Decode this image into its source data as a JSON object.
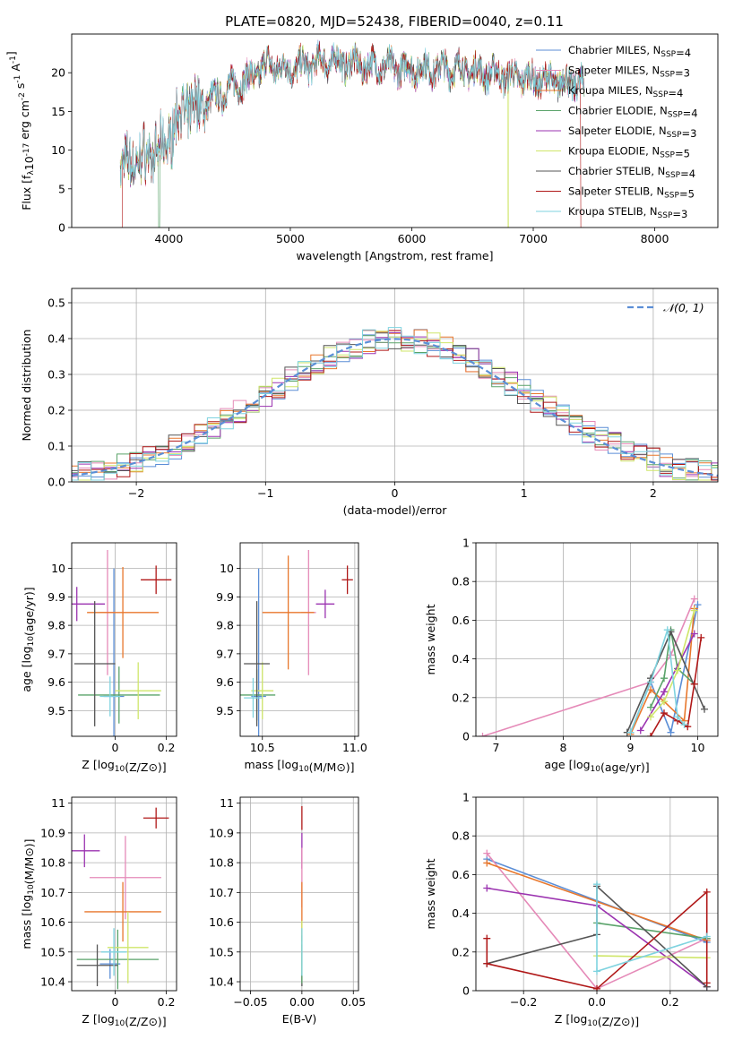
{
  "figure": {
    "title": "PLATE=0820, MJD=52438, FIBERID=0040, z=0.11"
  },
  "colors": {
    "Chabrier MILES": "#5b8ed6",
    "Salpeter MILES": "#e58ab8",
    "Kroupa MILES": "#e8772c",
    "Chabrier ELODIE": "#5aa36a",
    "Salpeter ELODIE": "#9b33b0",
    "Kroupa ELODIE": "#cfe66a",
    "Chabrier STELIB": "#555555",
    "Salpeter STELIB": "#b01818",
    "Kroupa STELIB": "#7fd3df",
    "normal": "#5b8ed6",
    "grid": "#b0b0b0"
  },
  "chart_data": [
    {
      "id": "spectrum",
      "type": "line",
      "xlabel": "wavelength [Angstrom, rest frame]",
      "ylabel": "Flux [f_λ10^{-17} erg cm^{-2} s^{-1} A^{-1}]",
      "xlim": [
        3200,
        8520
      ],
      "ylim": [
        0,
        25
      ],
      "xticks": [
        4000,
        5000,
        6000,
        7000,
        8000
      ],
      "yticks": [
        0,
        5,
        10,
        15,
        20
      ],
      "grid": false,
      "legend_position": "right",
      "spectrum_trend": {
        "x": [
          3600,
          3800,
          3950,
          4100,
          4300,
          4500,
          4700,
          4800,
          5000,
          5300,
          5600,
          6000,
          6400,
          6800,
          7100,
          7400
        ],
        "y": [
          8,
          9,
          10,
          15,
          16,
          18,
          19.5,
          21,
          20.5,
          21.5,
          21,
          20.5,
          20.5,
          19.5,
          19,
          18.5
        ]
      },
      "series": [
        {
          "name": "Chabrier MILES",
          "label": "Chabrier MILES, N_{SSP}=4",
          "nssp": 4
        },
        {
          "name": "Salpeter MILES",
          "label": "Salpeter MILES, N_{SSP}=3",
          "nssp": 3
        },
        {
          "name": "Kroupa MILES",
          "label": "Kroupa MILES, N_{SSP}=4",
          "nssp": 4
        },
        {
          "name": "Chabrier ELODIE",
          "label": "Chabrier ELODIE, N_{SSP}=4",
          "nssp": 4
        },
        {
          "name": "Salpeter ELODIE",
          "label": "Salpeter ELODIE, N_{SSP}=3",
          "nssp": 3
        },
        {
          "name": "Kroupa ELODIE",
          "label": "Kroupa ELODIE, N_{SSP}=5",
          "nssp": 5
        },
        {
          "name": "Chabrier STELIB",
          "label": "Chabrier STELIB, N_{SSP}=4",
          "nssp": 4
        },
        {
          "name": "Salpeter STELIB",
          "label": "Salpeter STELIB, N_{SSP}=5",
          "nssp": 5
        },
        {
          "name": "Kroupa STELIB",
          "label": "Kroupa STELIB, N_{SSP}=3",
          "nssp": 3
        }
      ]
    },
    {
      "id": "residuals",
      "type": "line",
      "xlabel": "(data-model)/error",
      "ylabel": "Normed distribution",
      "xlim": [
        -2.5,
        2.5
      ],
      "ylim": [
        0,
        0.54
      ],
      "xticks": [
        -2,
        -1,
        0,
        1,
        2
      ],
      "xtick_labels": [
        "−2",
        "−1",
        "0",
        "1",
        "2"
      ],
      "yticks": [
        0.0,
        0.1,
        0.2,
        0.3,
        0.4,
        0.5
      ],
      "ytick_labels": [
        "0.0",
        "0.1",
        "0.2",
        "0.3",
        "0.4",
        "0.5"
      ],
      "grid": true,
      "legend": "𝒩(0, 1)",
      "legend_position": "top-right",
      "bin_width": 0.1
    },
    {
      "id": "z-age",
      "type": "scatter",
      "xlabel": "Z [log10(Z/Z⊙)]",
      "ylabel": "age [log10(age/yr)]",
      "xlim": [
        -0.17,
        0.24
      ],
      "ylim": [
        9.41,
        10.09
      ],
      "xticks": [
        0.0,
        0.2
      ],
      "yticks": [
        9.5,
        9.6,
        9.7,
        9.8,
        9.9,
        10.0
      ],
      "grid": true,
      "points": [
        {
          "series": "Chabrier MILES",
          "x": -0.005,
          "y": 9.55,
          "xerr": 0.04,
          "yerr": 0.45
        },
        {
          "series": "Salpeter MILES",
          "x": -0.03,
          "y": 9.845,
          "xerr": 0.03,
          "yerr": 0.22
        },
        {
          "series": "Kroupa MILES",
          "x": 0.03,
          "y": 9.845,
          "xerr": 0.14,
          "yerr": 0.16
        },
        {
          "series": "Chabrier ELODIE",
          "x": 0.015,
          "y": 9.555,
          "xerr": 0.16,
          "yerr": 0.1
        },
        {
          "series": "Salpeter ELODIE",
          "x": -0.15,
          "y": 9.875,
          "xerr": 0.11,
          "yerr": 0.06
        },
        {
          "series": "Kroupa ELODIE",
          "x": 0.09,
          "y": 9.57,
          "xerr": 0.09,
          "yerr": 0.1
        },
        {
          "series": "Chabrier STELIB",
          "x": -0.08,
          "y": 9.665,
          "xerr": 0.08,
          "yerr": 0.22
        },
        {
          "series": "Salpeter STELIB",
          "x": 0.16,
          "y": 9.96,
          "xerr": 0.06,
          "yerr": 0.05
        },
        {
          "series": "Kroupa STELIB",
          "x": -0.02,
          "y": 9.55,
          "xerr": 0.04,
          "yerr": 0.07
        }
      ]
    },
    {
      "id": "mass-age",
      "type": "scatter",
      "xlabel": "mass [log10(M/M⊙)]",
      "ylabel": "",
      "xlim": [
        10.38,
        11.02
      ],
      "ylim": [
        9.41,
        10.09
      ],
      "xticks": [
        10.5,
        11.0
      ],
      "xtick_labels": [
        "10.5",
        "11.0"
      ],
      "yticks": [
        9.5,
        9.6,
        9.7,
        9.8,
        9.9,
        10.0
      ],
      "grid": true,
      "points": [
        {
          "series": "Chabrier MILES",
          "x": 10.48,
          "y": 9.55,
          "xerr": 0.04,
          "yerr": 0.45
        },
        {
          "series": "Salpeter MILES",
          "x": 10.75,
          "y": 9.845,
          "xerr": 0.04,
          "yerr": 0.22
        },
        {
          "series": "Kroupa MILES",
          "x": 10.64,
          "y": 9.845,
          "xerr": 0.14,
          "yerr": 0.2
        },
        {
          "series": "Chabrier ELODIE",
          "x": 10.47,
          "y": 9.555,
          "xerr": 0.1,
          "yerr": 0.09
        },
        {
          "series": "Salpeter ELODIE",
          "x": 10.84,
          "y": 9.875,
          "xerr": 0.05,
          "yerr": 0.05
        },
        {
          "series": "Kroupa ELODIE",
          "x": 10.5,
          "y": 9.57,
          "xerr": 0.06,
          "yerr": 0.1
        },
        {
          "series": "Chabrier STELIB",
          "x": 10.47,
          "y": 9.665,
          "xerr": 0.07,
          "yerr": 0.22
        },
        {
          "series": "Salpeter STELIB",
          "x": 10.96,
          "y": 9.96,
          "xerr": 0.03,
          "yerr": 0.05
        },
        {
          "series": "Kroupa STELIB",
          "x": 10.45,
          "y": 9.545,
          "xerr": 0.05,
          "yerr": 0.07
        }
      ]
    },
    {
      "id": "age-weight",
      "type": "line",
      "xlabel": "age [log10(age/yr)]",
      "ylabel": "mass weight",
      "xlim": [
        6.7,
        10.3
      ],
      "ylim": [
        0,
        1
      ],
      "xticks": [
        7,
        8,
        9,
        10
      ],
      "yticks": [
        0.0,
        0.2,
        0.4,
        0.6,
        0.8,
        1.0
      ],
      "grid": true,
      "series": [
        {
          "name": "Chabrier MILES",
          "x": [
            9.0,
            9.3,
            9.6,
            10.0
          ],
          "y": [
            0.02,
            0.28,
            0.02,
            0.68
          ]
        },
        {
          "name": "Salpeter MILES",
          "x": [
            6.8,
            9.3,
            9.6,
            9.95
          ],
          "y": [
            0.0,
            0.28,
            0.42,
            0.71
          ]
        },
        {
          "name": "Kroupa MILES",
          "x": [
            9.0,
            9.3,
            9.5,
            9.8,
            9.95
          ],
          "y": [
            0.01,
            0.24,
            0.18,
            0.08,
            0.66
          ]
        },
        {
          "name": "Chabrier ELODIE",
          "x": [
            9.3,
            9.5,
            9.6,
            9.7,
            9.95
          ],
          "y": [
            0.15,
            0.3,
            0.55,
            0.35,
            0.27
          ]
        },
        {
          "name": "Salpeter ELODIE",
          "x": [
            9.15,
            9.5,
            9.95
          ],
          "y": [
            0.03,
            0.23,
            0.53
          ]
        },
        {
          "name": "Kroupa ELODIE",
          "x": [
            9.3,
            9.5,
            9.7,
            9.95
          ],
          "y": [
            0.1,
            0.18,
            0.34,
            0.65
          ]
        },
        {
          "name": "Chabrier STELIB",
          "x": [
            8.95,
            9.3,
            9.6,
            10.1
          ],
          "y": [
            0.02,
            0.3,
            0.54,
            0.14
          ]
        },
        {
          "name": "Salpeter STELIB",
          "x": [
            9.3,
            9.5,
            9.7,
            9.85,
            9.95,
            10.05
          ],
          "y": [
            0.0,
            0.12,
            0.08,
            0.05,
            0.27,
            0.51
          ]
        },
        {
          "name": "Kroupa STELIB",
          "x": [
            9.0,
            9.3,
            9.55,
            9.7,
            9.8
          ],
          "y": [
            0.02,
            0.28,
            0.55,
            0.1,
            0.06
          ]
        }
      ]
    },
    {
      "id": "z-mass",
      "type": "scatter",
      "xlabel": "Z [log10(Z/Z⊙)]",
      "ylabel": "mass [log10(M/M⊙)]",
      "xlim": [
        -0.17,
        0.24
      ],
      "ylim": [
        10.37,
        11.02
      ],
      "xticks": [
        0.0,
        0.2
      ],
      "yticks": [
        10.4,
        10.5,
        10.6,
        10.7,
        10.8,
        10.9,
        11.0
      ],
      "grid": true,
      "points": [
        {
          "series": "Chabrier MILES",
          "x": -0.02,
          "y": 10.46,
          "xerr": 0.04,
          "yerr": 0.05
        },
        {
          "series": "Salpeter MILES",
          "x": 0.04,
          "y": 10.75,
          "xerr": 0.14,
          "yerr": 0.14
        },
        {
          "series": "Kroupa MILES",
          "x": 0.03,
          "y": 10.635,
          "xerr": 0.15,
          "yerr": 0.1
        },
        {
          "series": "Chabrier ELODIE",
          "x": 0.01,
          "y": 10.475,
          "xerr": 0.16,
          "yerr": 0.1
        },
        {
          "series": "Salpeter ELODIE",
          "x": -0.12,
          "y": 10.84,
          "xerr": 0.06,
          "yerr": 0.055
        },
        {
          "series": "Kroupa ELODIE",
          "x": 0.05,
          "y": 10.515,
          "xerr": 0.08,
          "yerr": 0.12
        },
        {
          "series": "Chabrier STELIB",
          "x": -0.07,
          "y": 10.455,
          "xerr": 0.08,
          "yerr": 0.07
        },
        {
          "series": "Salpeter STELIB",
          "x": 0.16,
          "y": 10.95,
          "xerr": 0.05,
          "yerr": 0.035
        },
        {
          "series": "Kroupa STELIB",
          "x": -0.005,
          "y": 10.5,
          "xerr": 0.05,
          "yerr": 0.08
        }
      ]
    },
    {
      "id": "ebv-mass",
      "type": "scatter",
      "xlabel": "E(B-V)",
      "ylabel": "",
      "xlim": [
        -0.06,
        0.055
      ],
      "ylim": [
        10.37,
        11.02
      ],
      "xticks": [
        -0.05,
        0.0,
        0.05
      ],
      "xtick_labels": [
        "−0.05",
        "0.00",
        "0.05"
      ],
      "yticks": [
        10.4,
        10.5,
        10.6,
        10.7,
        10.8,
        10.9,
        11.0
      ],
      "grid": true,
      "points": [
        {
          "series": "Salpeter STELIB",
          "x": 0.0,
          "y": 10.95,
          "xerr": 0.0,
          "yerr": 0.04
        },
        {
          "series": "Salpeter ELODIE",
          "x": 0.0,
          "y": 10.84,
          "xerr": 0.0,
          "yerr": 0.06
        },
        {
          "series": "Salpeter MILES",
          "x": 0.0,
          "y": 10.75,
          "xerr": 0.0,
          "yerr": 0.1
        },
        {
          "series": "Kroupa MILES",
          "x": 0.0,
          "y": 10.635,
          "xerr": 0.0,
          "yerr": 0.1
        },
        {
          "series": "Chabrier STELIB",
          "x": 0.0,
          "y": 10.455,
          "xerr": 0.0,
          "yerr": 0.07
        },
        {
          "series": "Chabrier ELODIE",
          "x": 0.0,
          "y": 10.475,
          "xerr": 0.0,
          "yerr": 0.08
        },
        {
          "series": "Kroupa ELODIE",
          "x": 0.0,
          "y": 10.515,
          "xerr": 0.0,
          "yerr": 0.09
        },
        {
          "series": "Kroupa STELIB",
          "x": 0.0,
          "y": 10.5,
          "xerr": 0.0,
          "yerr": 0.08
        }
      ]
    },
    {
      "id": "z-weight",
      "type": "line",
      "xlabel": "Z [log10(Z/Z⊙)]",
      "ylabel": "mass weight",
      "xlim": [
        -0.33,
        0.33
      ],
      "ylim": [
        0,
        1
      ],
      "xticks": [
        -0.2,
        0.0,
        0.2
      ],
      "xtick_labels": [
        "−0.2",
        "0.0",
        "0.2"
      ],
      "yticks": [
        0.0,
        0.2,
        0.4,
        0.6,
        0.8,
        1.0
      ],
      "grid": true,
      "series": [
        {
          "name": "Chabrier MILES",
          "x": [
            -0.3,
            0.3
          ],
          "y": [
            0.68,
            0.25
          ]
        },
        {
          "name": "Salpeter MILES",
          "x": [
            -0.3,
            0.0,
            0.3
          ],
          "y": [
            0.71,
            0.01,
            0.27
          ]
        },
        {
          "name": "Kroupa MILES",
          "x": [
            -0.3,
            0.3
          ],
          "y": [
            0.66,
            0.26
          ]
        },
        {
          "name": "Chabrier ELODIE",
          "x": [
            0.0,
            0.3
          ],
          "y": [
            0.35,
            0.27
          ]
        },
        {
          "name": "Salpeter ELODIE",
          "x": [
            -0.3,
            0.0,
            0.3
          ],
          "y": [
            0.53,
            0.44,
            0.02
          ]
        },
        {
          "name": "Kroupa ELODIE",
          "x": [
            0.0,
            0.3
          ],
          "y": [
            0.18,
            0.17
          ]
        },
        {
          "name": "Chabrier STELIB",
          "x": [
            -0.3,
            0.0,
            0.0,
            0.3
          ],
          "y": [
            0.14,
            0.29,
            0.54,
            0.02
          ]
        },
        {
          "name": "Salpeter STELIB",
          "x": [
            -0.3,
            -0.3,
            0.0,
            0.3,
            0.3
          ],
          "y": [
            0.27,
            0.14,
            0.01,
            0.51,
            0.04
          ]
        },
        {
          "name": "Kroupa STELIB",
          "x": [
            0.0,
            0.0,
            0.3
          ],
          "y": [
            0.55,
            0.1,
            0.28
          ]
        }
      ]
    }
  ]
}
